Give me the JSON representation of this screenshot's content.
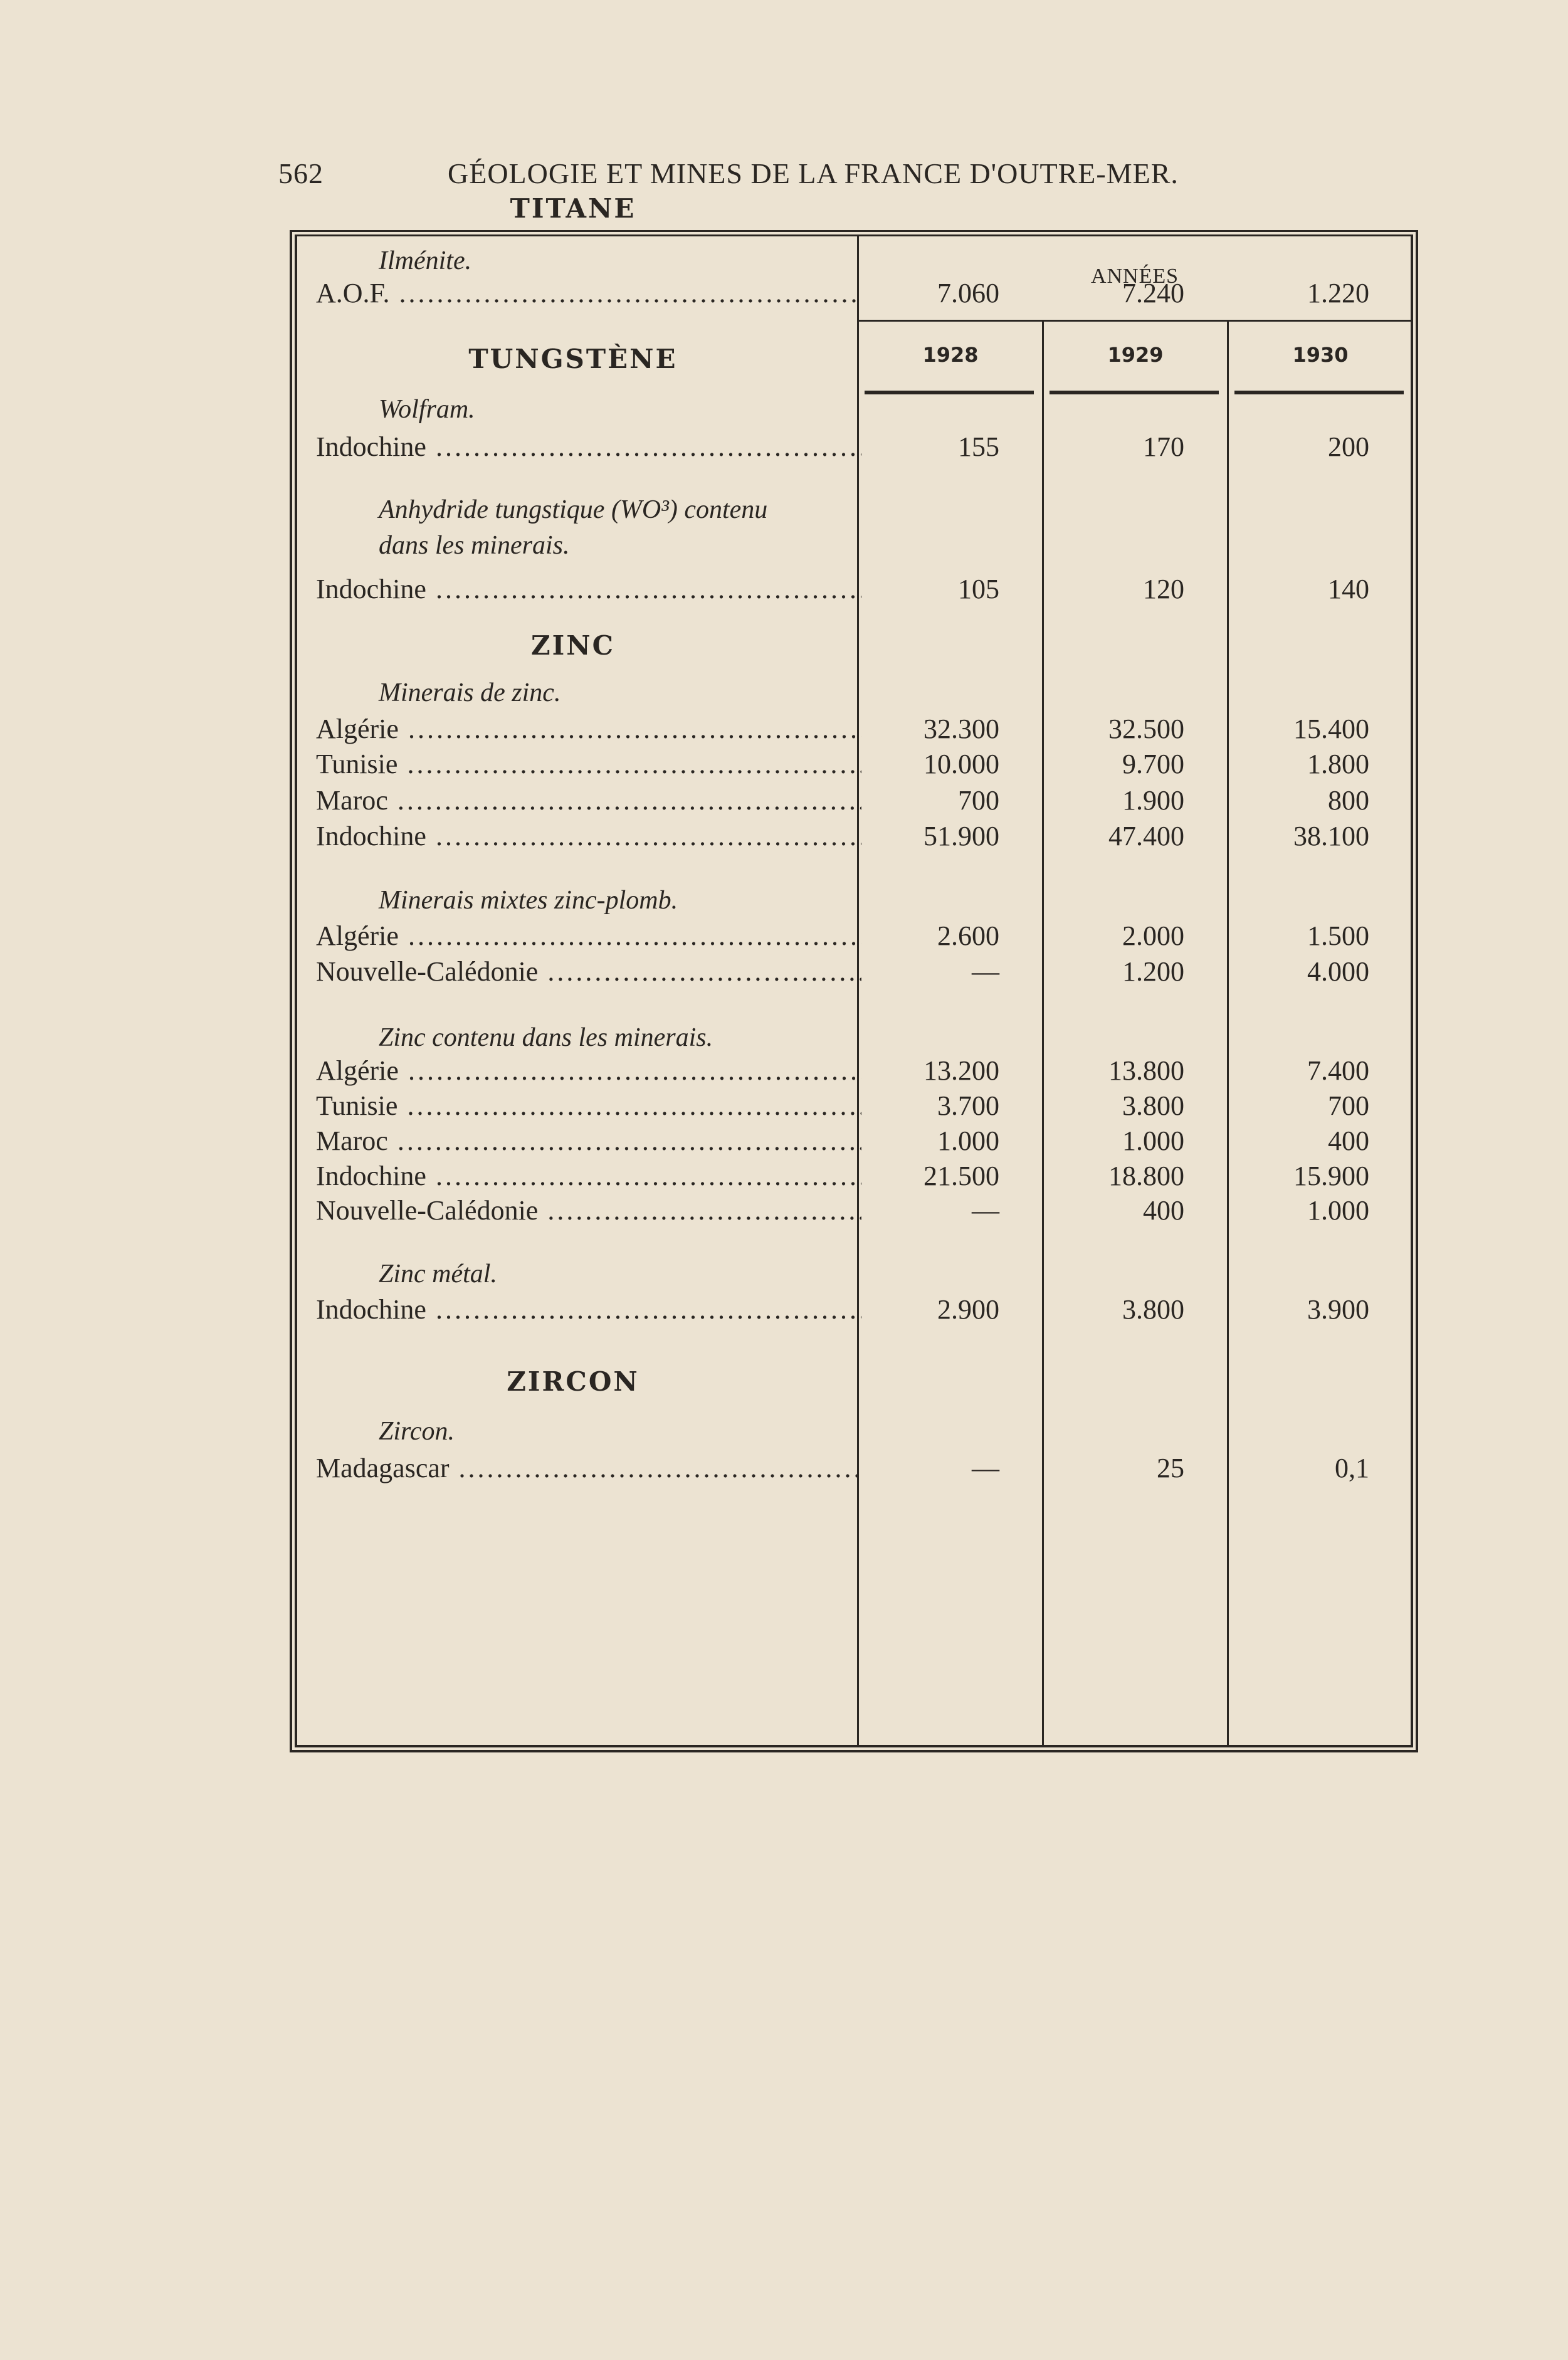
{
  "header": {
    "page_number": "562",
    "title": "GÉOLOGIE ET MINES DE LA FRANCE D'OUTRE-MER."
  },
  "table": {
    "group_header": "ANNÉES",
    "years": [
      "1928",
      "1929",
      "1930"
    ],
    "rows": [
      {
        "type": "section",
        "text": "TITANE"
      },
      {
        "type": "sub",
        "text": "Ilménite."
      },
      {
        "type": "data",
        "label": "A.O.F.",
        "values": [
          "7.060",
          "7.240",
          "1.220"
        ]
      },
      {
        "type": "section",
        "text": "TUNGSTÈNE"
      },
      {
        "type": "sub",
        "text": "Wolfram."
      },
      {
        "type": "data",
        "label": "Indochine",
        "values": [
          "155",
          "170",
          "200"
        ]
      },
      {
        "type": "sub",
        "text": "Anhydride tungstique (WO³) contenu"
      },
      {
        "type": "sub",
        "text": "dans les minerais."
      },
      {
        "type": "data",
        "label": "Indochine",
        "values": [
          "105",
          "120",
          "140"
        ]
      },
      {
        "type": "section",
        "text": "ZINC"
      },
      {
        "type": "sub",
        "text": "Minerais de zinc."
      },
      {
        "type": "data",
        "label": "Algérie",
        "values": [
          "32.300",
          "32.500",
          "15.400"
        ]
      },
      {
        "type": "data",
        "label": "Tunisie",
        "values": [
          "10.000",
          "9.700",
          "1.800"
        ]
      },
      {
        "type": "data",
        "label": "Maroc",
        "values": [
          "700",
          "1.900",
          "800"
        ]
      },
      {
        "type": "data",
        "label": "Indochine",
        "values": [
          "51.900",
          "47.400",
          "38.100"
        ]
      },
      {
        "type": "sub",
        "text": "Minerais mixtes zinc-plomb."
      },
      {
        "type": "data",
        "label": "Algérie",
        "values": [
          "2.600",
          "2.000",
          "1.500"
        ]
      },
      {
        "type": "data",
        "label": "Nouvelle-Calédonie",
        "values": [
          "—",
          "1.200",
          "4.000"
        ]
      },
      {
        "type": "sub",
        "text": "Zinc contenu dans les minerais."
      },
      {
        "type": "data",
        "label": "Algérie",
        "values": [
          "13.200",
          "13.800",
          "7.400"
        ]
      },
      {
        "type": "data",
        "label": "Tunisie",
        "values": [
          "3.700",
          "3.800",
          "700"
        ]
      },
      {
        "type": "data",
        "label": "Maroc",
        "values": [
          "1.000",
          "1.000",
          "400"
        ]
      },
      {
        "type": "data",
        "label": "Indochine",
        "values": [
          "21.500",
          "18.800",
          "15.900"
        ]
      },
      {
        "type": "data",
        "label": "Nouvelle-Calédonie",
        "values": [
          "—",
          "400",
          "1.000"
        ]
      },
      {
        "type": "sub",
        "text": "Zinc métal."
      },
      {
        "type": "data",
        "label": "Indochine",
        "values": [
          "2.900",
          "3.800",
          "3.900"
        ]
      },
      {
        "type": "section",
        "text": "ZIRCON"
      },
      {
        "type": "sub",
        "text": "Zircon."
      },
      {
        "type": "data",
        "label": "Madagascar",
        "values": [
          "—",
          "25",
          "0,1"
        ]
      }
    ]
  }
}
